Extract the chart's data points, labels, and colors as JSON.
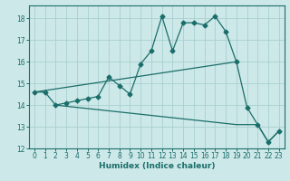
{
  "xlabel": "Humidex (Indice chaleur)",
  "bg_color": "#cde8e8",
  "grid_color": "#a8d0d0",
  "line_color": "#1a6e6a",
  "xlim": [
    -0.5,
    23.5
  ],
  "ylim": [
    12,
    18.6
  ],
  "xticks": [
    0,
    1,
    2,
    3,
    4,
    5,
    6,
    7,
    8,
    9,
    10,
    11,
    12,
    13,
    14,
    15,
    16,
    17,
    18,
    19,
    20,
    21,
    22,
    23
  ],
  "yticks": [
    12,
    13,
    14,
    15,
    16,
    17,
    18
  ],
  "line1_x": [
    0,
    1,
    2,
    3,
    4,
    5,
    6,
    7,
    8,
    9,
    10,
    11,
    12,
    13,
    14,
    15,
    16,
    17,
    18,
    19,
    20,
    21,
    22,
    23
  ],
  "line1_y": [
    14.6,
    14.6,
    14.0,
    14.1,
    14.2,
    14.3,
    14.4,
    15.3,
    14.9,
    14.5,
    15.9,
    16.5,
    18.1,
    16.5,
    17.8,
    17.8,
    17.7,
    18.1,
    17.4,
    16.0,
    13.9,
    13.1,
    12.3,
    12.8
  ],
  "line2_x": [
    0,
    19
  ],
  "line2_y": [
    14.6,
    16.0
  ],
  "line3_x": [
    2,
    19,
    21,
    22,
    23
  ],
  "line3_y": [
    14.0,
    13.1,
    13.1,
    12.3,
    12.8
  ]
}
